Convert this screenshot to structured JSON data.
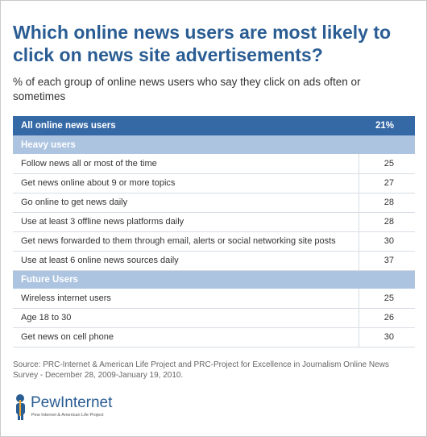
{
  "title": "Which online news users are most likely to click on news site advertisements?",
  "subtitle": "% of each group of online news users who say they click on ads often or sometimes",
  "chart_data": {
    "type": "table",
    "summary": {
      "label": "All online news users",
      "value": "21%"
    },
    "groups": [
      {
        "name": "Heavy users",
        "rows": [
          {
            "label": "Follow news all or most of the time",
            "value": 25
          },
          {
            "label": "Get news online about 9 or more topics",
            "value": 27
          },
          {
            "label": "Go online to get news daily",
            "value": 28
          },
          {
            "label": "Use at least 3 offline news platforms daily",
            "value": 28
          },
          {
            "label": "Get news forwarded to them through email, alerts or social networking site posts",
            "value": 30
          },
          {
            "label": "Use at least 6 online news sources daily",
            "value": 37
          }
        ]
      },
      {
        "name": "Future Users",
        "rows": [
          {
            "label": "Wireless internet users",
            "value": 25
          },
          {
            "label": "Age 18 to 30",
            "value": 26
          },
          {
            "label": "Get news on cell phone",
            "value": 30
          }
        ]
      }
    ]
  },
  "source": "Source: PRC-Internet & American Life Project and PRC-Project for Excellence in Journalism Online News Survey - December 28, 2009-January 19, 2010.",
  "logo": {
    "name_part1": "Pew",
    "name_part2": "Internet",
    "tagline": "Pew Internet & American Life Project"
  },
  "colors": {
    "title": "#2a5d93",
    "summary_row": "#3569a6",
    "group_row": "#adc4e1"
  }
}
